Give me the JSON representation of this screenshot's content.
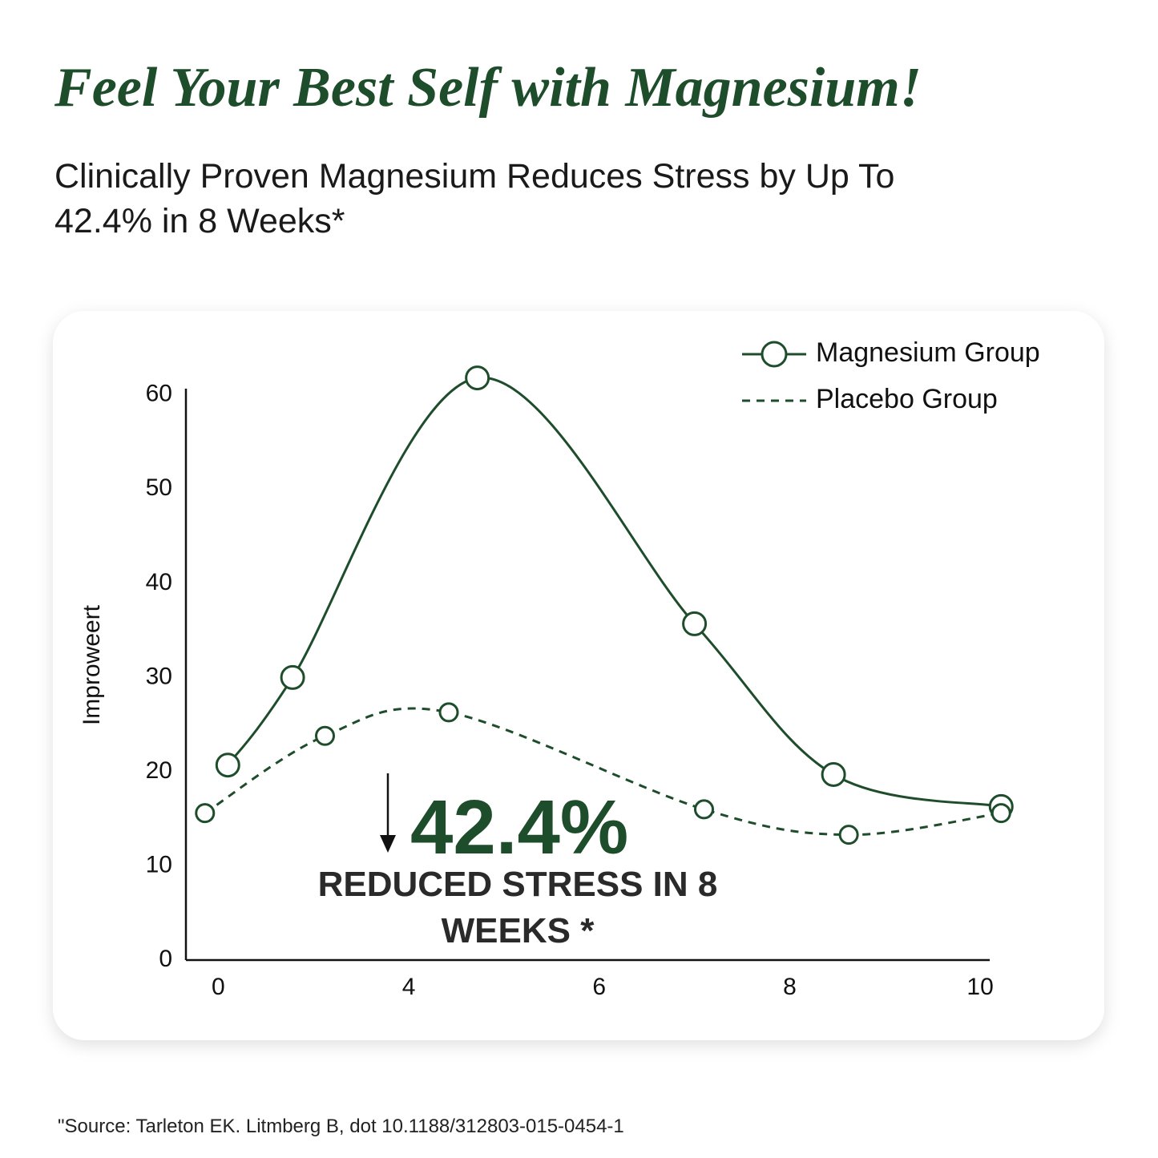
{
  "chart_data": {
    "type": "line",
    "title": "Feel Your Best Self with Magnesium!",
    "subtitle": "Clinically Proven Magnesium Reduces Stress by Up To 42.4% in 8 Weeks*",
    "y_label": "Improweert",
    "annotation_value": "42.4%",
    "annotation_text": "REDUCED STRESS IN 8 WEEKS *",
    "source": "\"Source: Tarleton EK. Litmberg B, dot 10.1188/312803-015-0454-1",
    "legend": "upper right",
    "xlim": [
      -0.17,
      4.05
    ],
    "ylim": [
      0,
      61
    ],
    "xticks": [
      {
        "value": 0,
        "label": "0"
      },
      {
        "value": 1,
        "label": "4"
      },
      {
        "value": 2,
        "label": "6"
      },
      {
        "value": 3,
        "label": "8"
      },
      {
        "value": 4,
        "label": "10"
      }
    ],
    "yticks": [
      0,
      10,
      20,
      30,
      40,
      50,
      60
    ],
    "series": [
      {
        "name": "Magnesium Group",
        "color": "#1e4d2b",
        "dashed": false,
        "x": [
          0.05,
          0.39,
          1.36,
          2.5,
          3.23,
          4.11
        ],
        "values": [
          20.7,
          30,
          61.8,
          35.7,
          19.7,
          16.3
        ]
      },
      {
        "name": "Placebo Group",
        "color": "#1e4d2b",
        "dashed": true,
        "x": [
          -0.07,
          0.56,
          1.21,
          2.55,
          3.31,
          4.11
        ],
        "values": [
          15.6,
          23.8,
          26.3,
          16,
          13.3,
          15.6
        ]
      }
    ]
  }
}
